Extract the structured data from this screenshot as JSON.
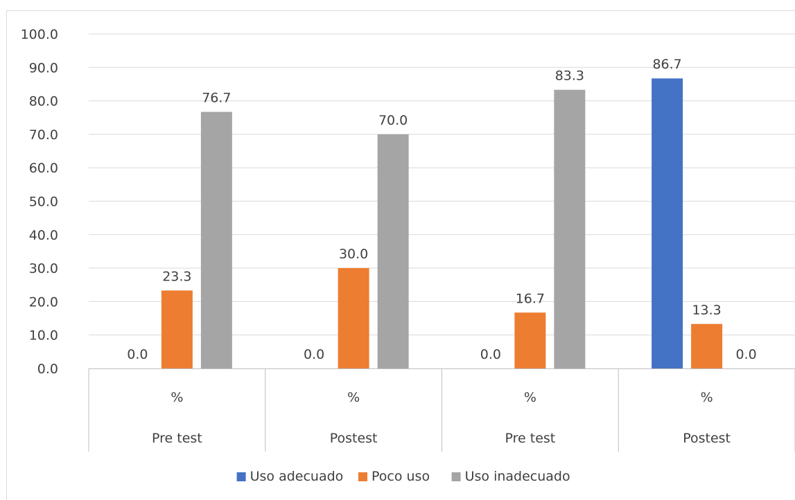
{
  "chart_data": {
    "type": "bar",
    "groups": [
      {
        "unit": "%",
        "label": "Pre test"
      },
      {
        "unit": "%",
        "label": "Postest"
      },
      {
        "unit": "%",
        "label": "Pre test"
      },
      {
        "unit": "%",
        "label": "Postest"
      }
    ],
    "series": [
      {
        "name": "Uso adecuado",
        "color": "#4472c4",
        "values": [
          0.0,
          0.0,
          0.0,
          86.7
        ]
      },
      {
        "name": "Poco uso",
        "color": "#ed7d31",
        "values": [
          23.3,
          30.0,
          16.7,
          13.3
        ]
      },
      {
        "name": "Uso inadecuado",
        "color": "#a5a5a5",
        "values": [
          76.7,
          70.0,
          83.3,
          0.0
        ]
      }
    ],
    "y_ticks": [
      "0.0",
      "10.0",
      "20.0",
      "30.0",
      "40.0",
      "50.0",
      "60.0",
      "70.0",
      "80.0",
      "90.0",
      "100.0"
    ],
    "ylim": [
      0,
      100
    ],
    "data_labels": true,
    "grid": true,
    "legend_position": "bottom"
  }
}
